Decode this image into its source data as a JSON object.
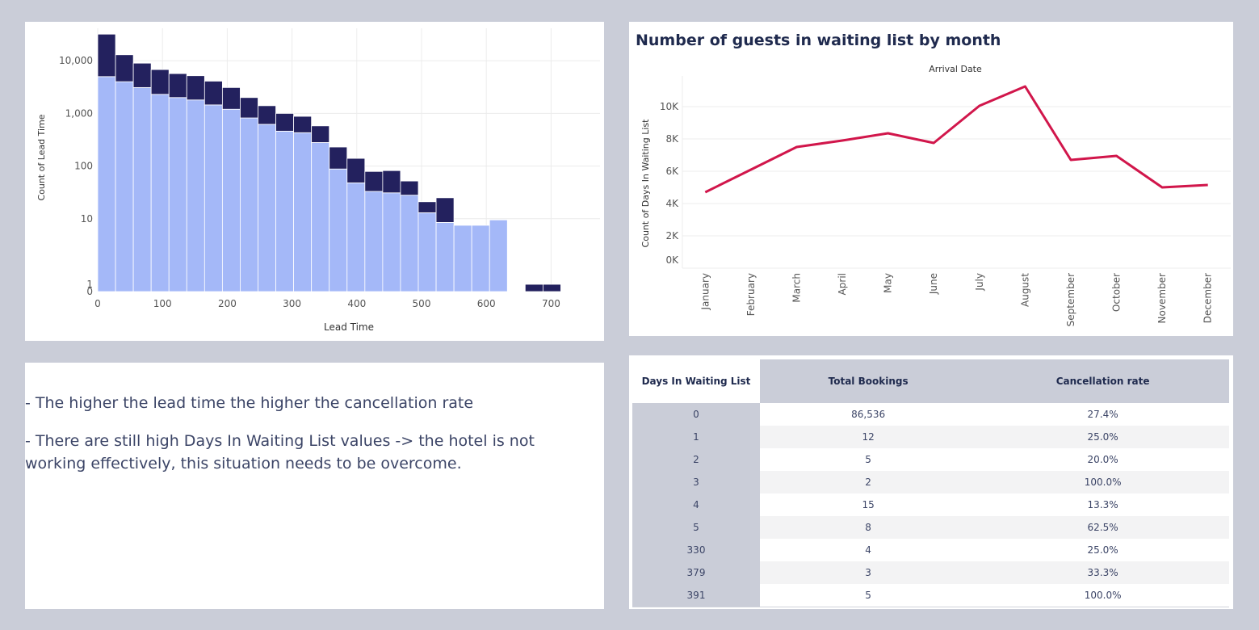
{
  "chart_data": [
    {
      "type": "bar",
      "title": "",
      "xlabel": "Lead Time",
      "ylabel": "Count of Lead Time",
      "y_scale": "log",
      "y_ticks": [
        "10,000",
        "1,000",
        "100",
        "10",
        "1",
        "0"
      ],
      "x_ticks": [
        "0",
        "100",
        "200",
        "300",
        "400",
        "500",
        "600",
        "700"
      ],
      "xlim": [
        0,
        780
      ],
      "bin_width": 27.5,
      "stacked": true,
      "grid": true,
      "legend": "none",
      "colors": {
        "lower": "#a4b8f8",
        "upper": "#23215e"
      },
      "bins": [
        {
          "x0": 0,
          "lower": 5000,
          "total": 32000
        },
        {
          "x0": 27.5,
          "lower": 4000,
          "total": 13000
        },
        {
          "x0": 55,
          "lower": 3100,
          "total": 9000
        },
        {
          "x0": 82.5,
          "lower": 2300,
          "total": 6800
        },
        {
          "x0": 110,
          "lower": 2000,
          "total": 5700
        },
        {
          "x0": 137.5,
          "lower": 1800,
          "total": 5200
        },
        {
          "x0": 165,
          "lower": 1450,
          "total": 4100
        },
        {
          "x0": 192.5,
          "lower": 1200,
          "total": 3100
        },
        {
          "x0": 220,
          "lower": 820,
          "total": 2000
        },
        {
          "x0": 247.5,
          "lower": 620,
          "total": 1400
        },
        {
          "x0": 275,
          "lower": 460,
          "total": 1000
        },
        {
          "x0": 302.5,
          "lower": 430,
          "total": 880
        },
        {
          "x0": 330,
          "lower": 280,
          "total": 580
        },
        {
          "x0": 357.5,
          "lower": 88,
          "total": 230
        },
        {
          "x0": 385,
          "lower": 48,
          "total": 140
        },
        {
          "x0": 412.5,
          "lower": 33,
          "total": 79
        },
        {
          "x0": 440,
          "lower": 31,
          "total": 82
        },
        {
          "x0": 467.5,
          "lower": 28,
          "total": 52
        },
        {
          "x0": 495,
          "lower": 13,
          "total": 21
        },
        {
          "x0": 522.5,
          "lower": 8.5,
          "total": 25
        },
        {
          "x0": 550,
          "lower": 7.5,
          "total": 7.5
        },
        {
          "x0": 577.5,
          "lower": 7.5,
          "total": 7.5
        },
        {
          "x0": 605,
          "lower": 9.5,
          "total": 9.5
        },
        {
          "x0": 660,
          "lower": 0,
          "total": 1
        },
        {
          "x0": 687.5,
          "lower": 0,
          "total": 1
        }
      ]
    },
    {
      "type": "line",
      "title": "Number of guests in waiting list by month",
      "subtitle": "Arrival Date",
      "xlabel": "",
      "ylabel": "Count of Days In Waiting List",
      "categories": [
        "January",
        "February",
        "March",
        "April",
        "May",
        "June",
        "July",
        "August",
        "September",
        "October",
        "November",
        "December"
      ],
      "values": [
        4700,
        6100,
        7500,
        7900,
        8350,
        7750,
        10050,
        11250,
        6700,
        6950,
        5000,
        5150
      ],
      "ylim": [
        0,
        12200
      ],
      "y_ticks": [
        "10K",
        "8K",
        "6K",
        "4K",
        "2K",
        "0K"
      ],
      "color": "#d1164b",
      "grid": true
    }
  ],
  "insights": [
    "- The higher the lead time the higher the cancellation rate",
    "- There are still high Days In Waiting List values -> the hotel is not working effectively, this situation needs to be overcome."
  ],
  "table": {
    "headers": [
      "Days In Waiting List",
      "Total Bookings",
      "Cancellation rate"
    ],
    "rows": [
      [
        "0",
        "86,536",
        "27.4%"
      ],
      [
        "1",
        "12",
        "25.0%"
      ],
      [
        "2",
        "5",
        "20.0%"
      ],
      [
        "3",
        "2",
        "100.0%"
      ],
      [
        "4",
        "15",
        "13.3%"
      ],
      [
        "5",
        "8",
        "62.5%"
      ],
      [
        "330",
        "4",
        "25.0%"
      ],
      [
        "379",
        "3",
        "33.3%"
      ],
      [
        "391",
        "5",
        "100.0%"
      ]
    ]
  }
}
